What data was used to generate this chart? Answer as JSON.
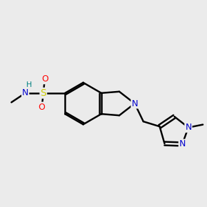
{
  "bg_color": "#ebebeb",
  "bond_color": "#000000",
  "bond_width": 1.8,
  "atom_colors": {
    "N": "#0000cc",
    "S": "#cccc00",
    "O": "#ff0000",
    "H": "#008080",
    "C": "#000000"
  },
  "font_size": 9,
  "fig_size": [
    3.0,
    3.0
  ],
  "dpi": 100
}
